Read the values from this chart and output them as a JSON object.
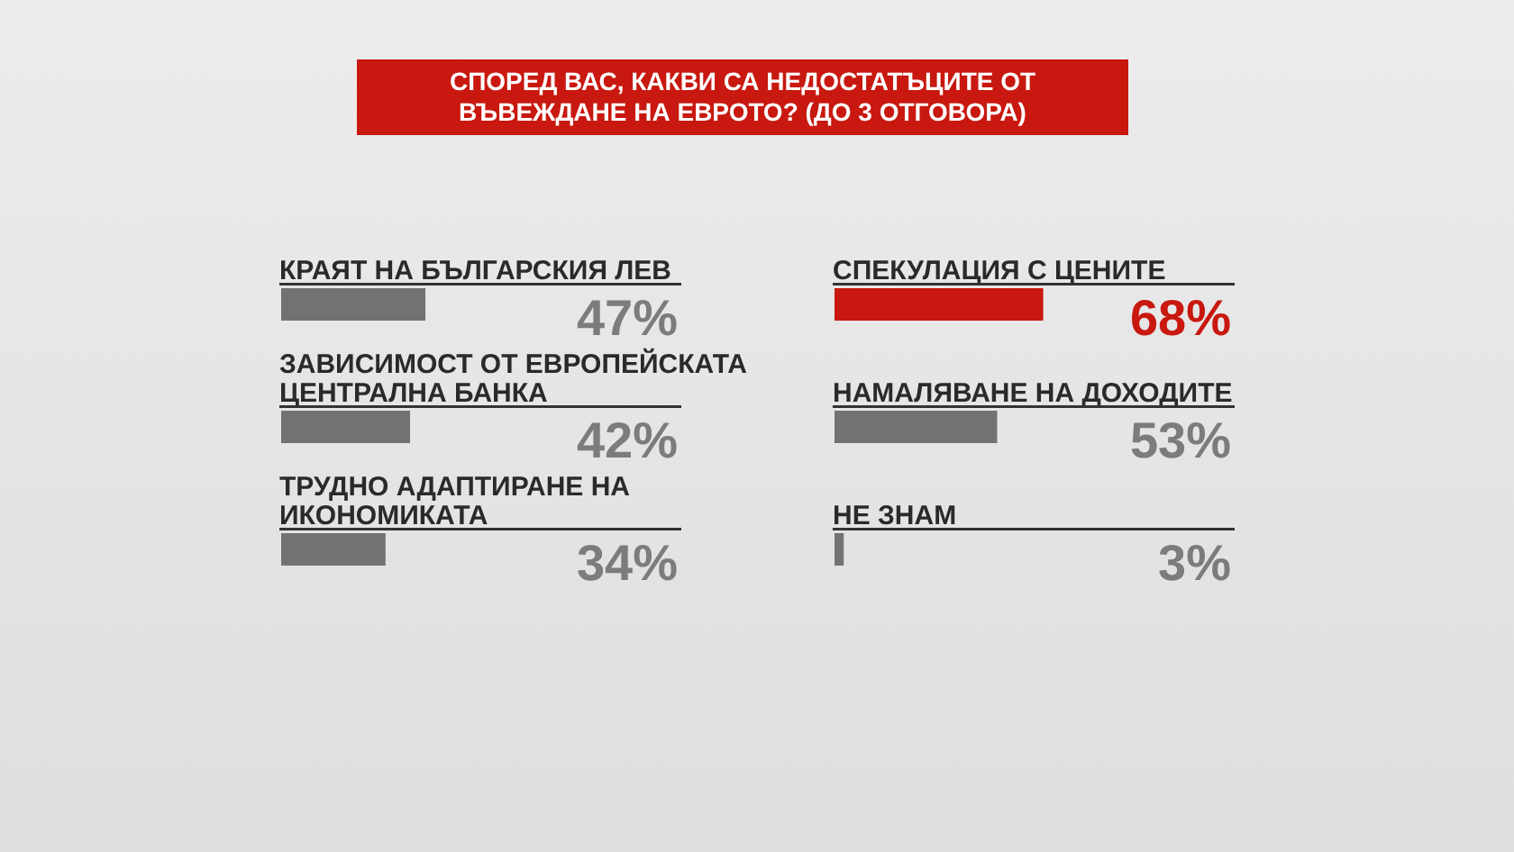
{
  "chart_data": [
    {
      "type": "bar",
      "orientation": "horizontal",
      "title": "СПОРЕД ВАС, КАКВИ СА НЕДОСТАТЪЦИТЕ ОТ ВЪВЕЖДАНЕ НА ЕВРОТО? (ДО 3 ОТГОВОРА)",
      "categories": [
        "КРАЯТ НА БЪЛГАРСКИЯ ЛЕВ",
        "ЗАВИСИМОСТ ОТ ЕВРОПЕЙСКАТА ЦЕНТРАЛНА БАНКА",
        "ТРУДНО АДАПТИРАНЕ НА ИКОНОМИКАТА"
      ],
      "values": [
        47,
        42,
        34
      ],
      "value_labels": [
        "47%",
        "42%",
        "34%"
      ],
      "colors": [
        "#727272",
        "#727272",
        "#727272"
      ]
    },
    {
      "type": "bar",
      "orientation": "horizontal",
      "categories": [
        "СПЕКУЛАЦИЯ С ЦЕНИТЕ",
        "НАМАЛЯВАНЕ НА ДОХОДИТЕ",
        "НЕ ЗНАМ"
      ],
      "values": [
        68,
        53,
        3
      ],
      "value_labels": [
        "68%",
        "53%",
        "3%"
      ],
      "colors": [
        "#c8180f",
        "#727272",
        "#727272"
      ]
    }
  ]
}
